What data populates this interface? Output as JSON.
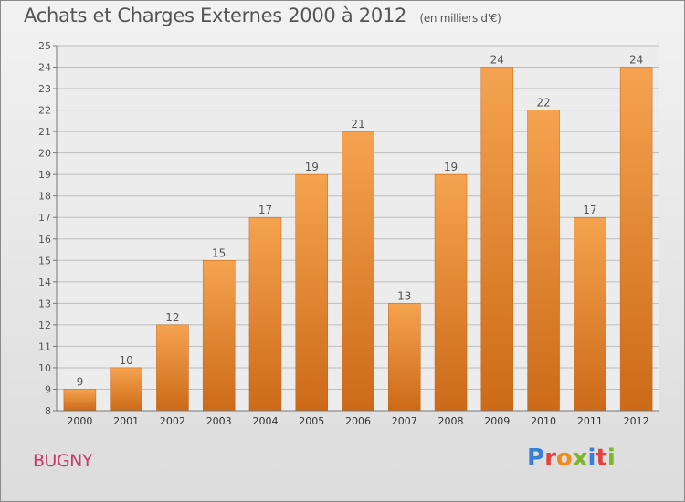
{
  "header": {
    "title": "Achats et Charges Externes 2000 à 2012",
    "unit": "(en milliers d'€)"
  },
  "location": "BUGNY",
  "brand": "Proxiti",
  "colors": {
    "bar_top": "#f5a350",
    "bar_bottom": "#cc6a18",
    "grid": "#bdbdbd",
    "text": "#555555",
    "city": "#c73a6a"
  },
  "chart_data": {
    "type": "bar",
    "title": "Achats et Charges Externes 2000 à 2012",
    "subtitle": "(en milliers d'€)",
    "categories": [
      "2000",
      "2001",
      "2002",
      "2003",
      "2004",
      "2005",
      "2006",
      "2007",
      "2008",
      "2009",
      "2010",
      "2011",
      "2012"
    ],
    "values": [
      9,
      10,
      12,
      15,
      17,
      19,
      21,
      13,
      19,
      24,
      22,
      17,
      24
    ],
    "ylim": [
      8,
      25
    ],
    "yticks": [
      8,
      9,
      10,
      11,
      12,
      13,
      14,
      15,
      16,
      17,
      18,
      19,
      20,
      21,
      22,
      23,
      24,
      25
    ],
    "grid": true,
    "data_labels": true
  }
}
